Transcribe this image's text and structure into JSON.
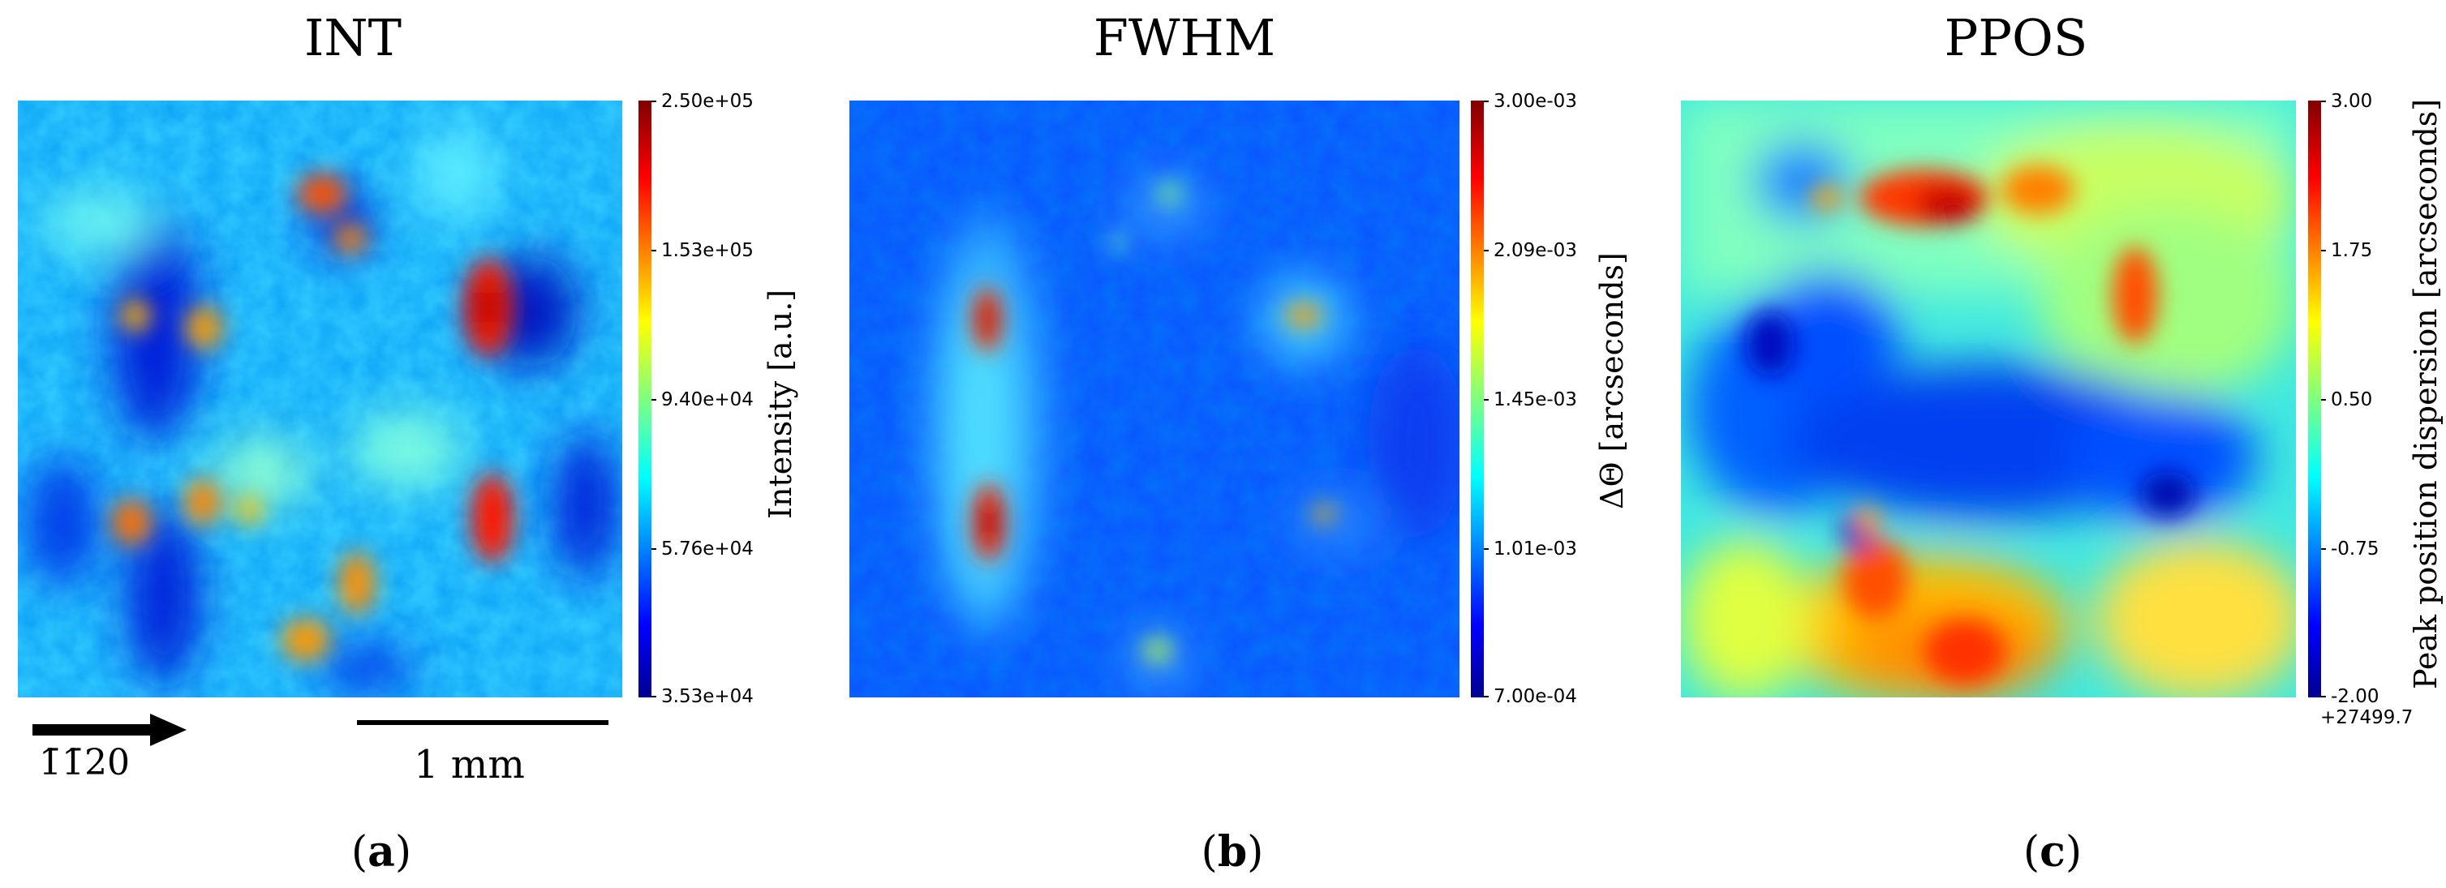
{
  "chart_data": [
    {
      "type": "heatmap",
      "title": "INT",
      "colorbar": {
        "label": "Intensity [a.u.]",
        "ticks": [
          "2.50e+05",
          "1.53e+05",
          "9.40e+04",
          "5.76e+04",
          "3.53e+04"
        ],
        "range": [
          35300,
          250000
        ],
        "colormap": "jet"
      },
      "annotations": {
        "direction_label": "1̄1̄20",
        "scalebar_label": "1 mm"
      },
      "subfigure_label": "a"
    },
    {
      "type": "heatmap",
      "title": "FWHM",
      "colorbar": {
        "label": "ΔΘ [arcseconds]",
        "ticks": [
          "3.00e-03",
          "2.09e-03",
          "1.45e-03",
          "1.01e-03",
          "7.00e-04"
        ],
        "range": [
          0.0007,
          0.003
        ],
        "colormap": "jet"
      },
      "subfigure_label": "b"
    },
    {
      "type": "heatmap",
      "title": "PPOS",
      "colorbar": {
        "label": "Peak position dispersion [arcseconds]",
        "ticks": [
          "3.00",
          "1.75",
          "0.50",
          "-0.75",
          "-2.00"
        ],
        "offset": "+27499.7",
        "range": [
          -2.0,
          3.0
        ],
        "colormap": "jet"
      },
      "subfigure_label": "c"
    }
  ],
  "colors": {
    "jet_dark_blue": "#00008f",
    "jet_blue": "#0050ff",
    "jet_cyan": "#00e0ff",
    "jet_yellow": "#ffff00",
    "jet_orange": "#ff8000",
    "jet_red": "#c00000"
  }
}
